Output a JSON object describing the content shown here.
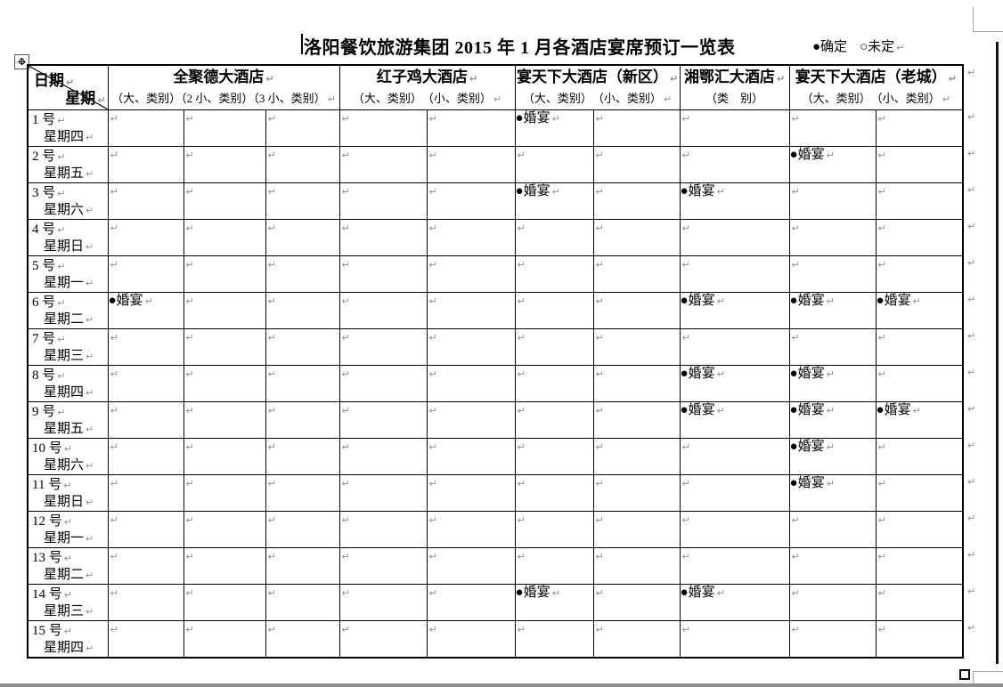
{
  "title": "洛阳餐饮旅游集团 2015 年 1 月各酒店宴席预订一览表",
  "legend": {
    "confirmed": "●确定",
    "pending": "○未定"
  },
  "corner": {
    "date_label": "日期",
    "week_label": "星期"
  },
  "marks": {
    "pilcrow": "↵",
    "banquet": "●婚宴"
  },
  "hotels": [
    {
      "name": "全聚德大酒店",
      "categories": "（大、类别）（2 小、类别）（3 小、类别）"
    },
    {
      "name": "红子鸡大酒店",
      "categories": "（大、类别）　（小、类别）"
    },
    {
      "name": "宴天下大酒店（新区）",
      "categories": "（大、类别）　（小、类别）"
    },
    {
      "name": "湘鄂汇大酒店",
      "categories": "（类　别）"
    },
    {
      "name": "宴天下大酒店（老城）",
      "categories": "（大、类别）　（小、类别）"
    }
  ],
  "rows": [
    {
      "day": "1 号",
      "week": "星期四",
      "cells": [
        "",
        "",
        "",
        "",
        "",
        "●婚宴",
        "",
        "",
        "",
        ""
      ]
    },
    {
      "day": "2 号",
      "week": "星期五",
      "cells": [
        "",
        "",
        "",
        "",
        "",
        "",
        "",
        "",
        "●婚宴",
        ""
      ]
    },
    {
      "day": "3 号",
      "week": "星期六",
      "cells": [
        "",
        "",
        "",
        "",
        "",
        "●婚宴",
        "",
        "●婚宴",
        "",
        ""
      ]
    },
    {
      "day": "4 号",
      "week": "星期日",
      "cells": [
        "",
        "",
        "",
        "",
        "",
        "",
        "",
        "",
        "",
        ""
      ]
    },
    {
      "day": "5 号",
      "week": "星期一",
      "cells": [
        "",
        "",
        "",
        "",
        "",
        "",
        "",
        "",
        "",
        ""
      ]
    },
    {
      "day": "6 号",
      "week": "星期二",
      "cells": [
        "●婚宴",
        "",
        "",
        "",
        "",
        "",
        "",
        "●婚宴",
        "●婚宴",
        "●婚宴"
      ]
    },
    {
      "day": "7 号",
      "week": "星期三",
      "cells": [
        "",
        "",
        "",
        "",
        "",
        "",
        "",
        "",
        "",
        ""
      ]
    },
    {
      "day": "8 号",
      "week": "星期四",
      "cells": [
        "",
        "",
        "",
        "",
        "",
        "",
        "",
        "●婚宴",
        "●婚宴",
        ""
      ]
    },
    {
      "day": "9 号",
      "week": "星期五",
      "cells": [
        "",
        "",
        "",
        "",
        "",
        "",
        "",
        "●婚宴",
        "●婚宴",
        "●婚宴"
      ]
    },
    {
      "day": "10 号",
      "week": "星期六",
      "cells": [
        "",
        "",
        "",
        "",
        "",
        "",
        "",
        "",
        "●婚宴",
        ""
      ]
    },
    {
      "day": "11 号",
      "week": "星期日",
      "cells": [
        "",
        "",
        "",
        "",
        "",
        "",
        "",
        "",
        "●婚宴",
        ""
      ]
    },
    {
      "day": "12 号",
      "week": "星期一",
      "cells": [
        "",
        "",
        "",
        "",
        "",
        "",
        "",
        "",
        "",
        ""
      ]
    },
    {
      "day": "13 号",
      "week": "星期二",
      "cells": [
        "",
        "",
        "",
        "",
        "",
        "",
        "",
        "",
        "",
        ""
      ]
    },
    {
      "day": "14 号",
      "week": "星期三",
      "cells": [
        "",
        "",
        "",
        "",
        "",
        "●婚宴",
        "",
        "●婚宴",
        "",
        ""
      ]
    },
    {
      "day": "15 号",
      "week": "星期四",
      "cells": [
        "",
        "",
        "",
        "",
        "",
        "",
        "",
        "",
        "",
        ""
      ]
    }
  ]
}
